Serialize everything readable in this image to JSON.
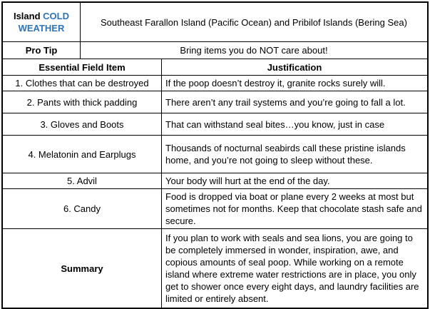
{
  "accent_blue": "#2E74B5",
  "header": {
    "title_black": "Island",
    "title_blue": "COLD WEATHER",
    "location": "Southeast Farallon Island (Pacific Ocean) and Pribilof Islands (Bering Sea)"
  },
  "pro_tip": {
    "label": "Pro Tip",
    "text": "Bring items you do NOT care about!"
  },
  "columns": {
    "item": "Essential Field Item",
    "justification": "Justification"
  },
  "rows": [
    {
      "item": "1. Clothes that can be destroyed",
      "justification": "If the poop doesn’t destroy it, granite rocks surely will."
    },
    {
      "item": "2. Pants with thick padding",
      "justification": "There aren’t any trail systems and you’re going to fall a lot."
    },
    {
      "item": "3. Gloves and Boots",
      "justification": "That can withstand seal bites…you know, just in case"
    },
    {
      "item": "4. Melatonin and Earplugs",
      "justification": "Thousands of nocturnal seabirds call these pristine islands home, and you’re not going to sleep without these."
    },
    {
      "item": "5. Advil",
      "justification": "Your body will hurt at the end of the day."
    },
    {
      "item": "6. Candy",
      "justification": "Food is dropped via boat or plane every 2 weeks at most but sometimes not for months. Keep that chocolate stash safe and secure."
    }
  ],
  "summary": {
    "label": "Summary",
    "text": "If you plan to work with seals and sea lions, you are going to be completely immersed in wonder, inspiration, awe, and copious amounts of seal poop. While working on a remote island where extreme water restrictions are in place, you only get to shower once every eight days, and laundry facilities are limited or entirely absent."
  }
}
